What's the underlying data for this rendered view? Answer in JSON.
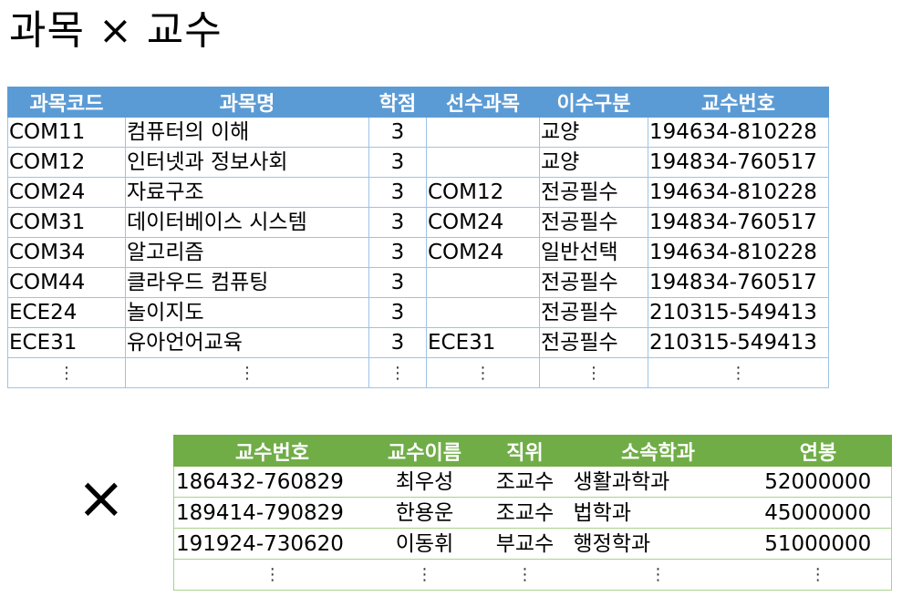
{
  "title": "과목 × 교수",
  "cross_symbol": "×",
  "table1": {
    "headers": [
      "과목코드",
      "과목명",
      "학점",
      "선수과목",
      "이수구분",
      "교수번호"
    ],
    "rows": [
      [
        "COM11",
        "컴퓨터의 이해",
        "3",
        "",
        "교양",
        "194634-810228"
      ],
      [
        "COM12",
        "인터넷과 정보사회",
        "3",
        "",
        "교양",
        "194834-760517"
      ],
      [
        "COM24",
        "자료구조",
        "3",
        "COM12",
        "전공필수",
        "194634-810228"
      ],
      [
        "COM31",
        "데이터베이스 시스템",
        "3",
        "COM24",
        "전공필수",
        "194834-760517"
      ],
      [
        "COM34",
        "알고리즘",
        "3",
        "COM24",
        "일반선택",
        "194634-810228"
      ],
      [
        "COM44",
        "클라우드 컴퓨팅",
        "3",
        "",
        "전공필수",
        "194834-760517"
      ],
      [
        "ECE24",
        "놀이지도",
        "3",
        "",
        "전공필수",
        "210315-549413"
      ],
      [
        "ECE31",
        "유아언어교육",
        "3",
        "ECE31",
        "전공필수",
        "210315-549413"
      ]
    ],
    "ellipsis": "⋮"
  },
  "table2": {
    "headers": [
      "교수번호",
      "교수이름",
      "직위",
      "소속학과",
      "연봉"
    ],
    "rows": [
      [
        "186432-760829",
        "최우성",
        "조교수",
        "생활과학과",
        "52000000"
      ],
      [
        "189414-790829",
        "한용운",
        "조교수",
        "법학과",
        "45000000"
      ],
      [
        "191924-730620",
        "이동휘",
        "부교수",
        "행정학과",
        "51000000"
      ]
    ],
    "ellipsis": "⋮"
  },
  "colors": {
    "table1_header": "#5b9bd5",
    "table1_border": "#9dc3e6",
    "table2_header": "#70ad47",
    "table2_border": "#a9d18e"
  }
}
